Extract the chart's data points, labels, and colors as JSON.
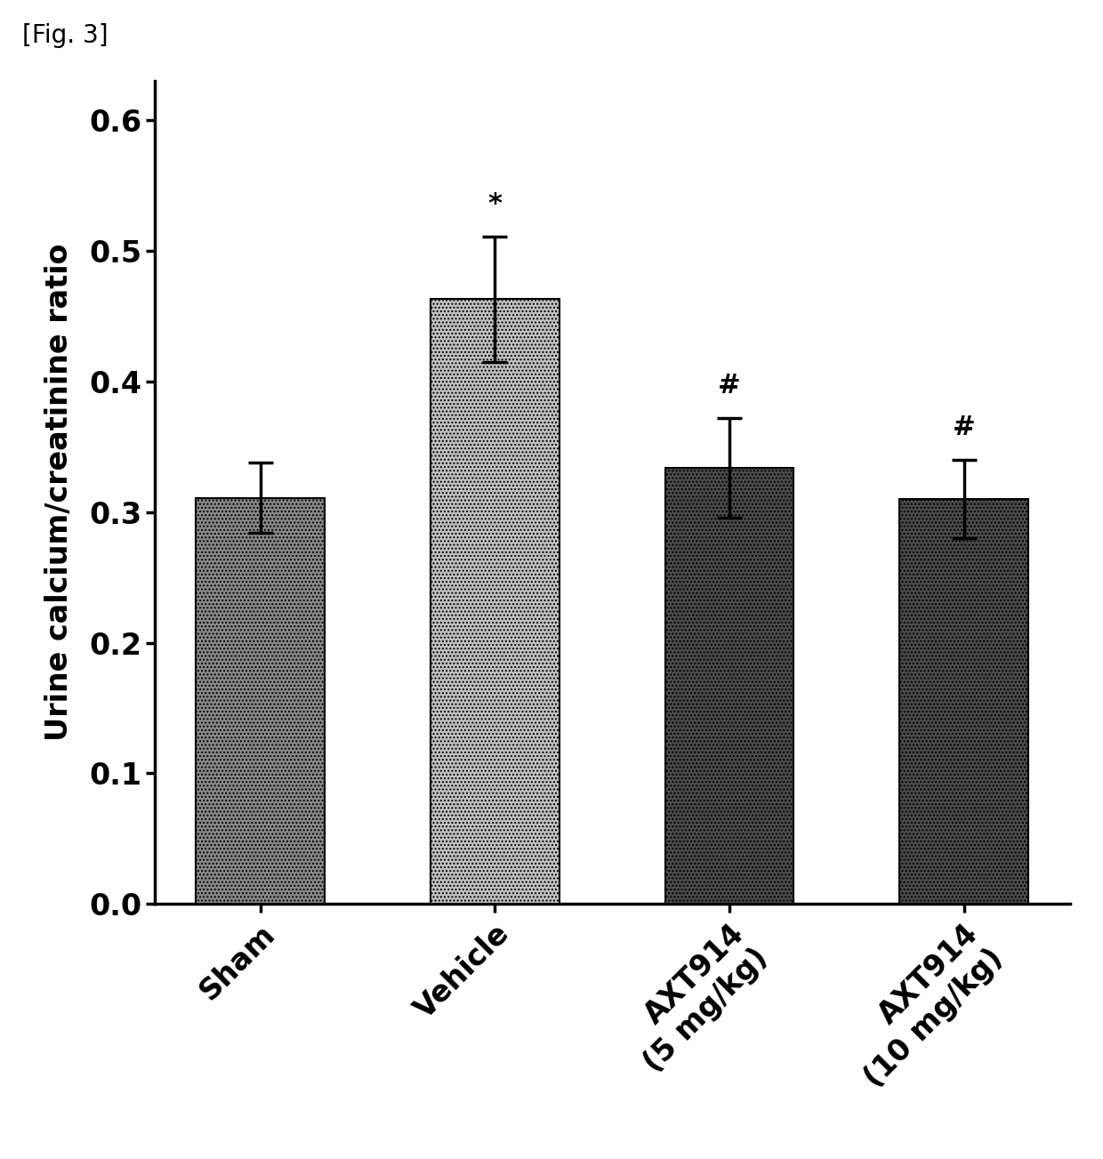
{
  "categories": [
    "Sham",
    "Vehicle",
    "AXT914\n(5 mg/kg)",
    "AXT914\n(10 mg/kg)"
  ],
  "values": [
    0.311,
    0.463,
    0.334,
    0.31
  ],
  "errors": [
    0.027,
    0.048,
    0.038,
    0.03
  ],
  "bar_colors": [
    "#888888",
    "#c0c0c0",
    "#4a4a4a",
    "#4a4a4a"
  ],
  "bar_edgecolors": [
    "#000000",
    "#000000",
    "#000000",
    "#000000"
  ],
  "hatch_patterns": [
    "....",
    "....",
    "....",
    "...."
  ],
  "annotations": [
    "",
    "*",
    "#",
    "#"
  ],
  "ylabel": "Urine calcium/creatinine ratio",
  "ylim": [
    0.0,
    0.63
  ],
  "yticks": [
    0.0,
    0.1,
    0.2,
    0.3,
    0.4,
    0.5,
    0.6
  ],
  "fig_label": "[Fig. 3]",
  "fig_width": 12.4,
  "fig_height": 13.03,
  "bar_width": 0.55,
  "label_fontsize": 24,
  "tick_fontsize": 24,
  "annotation_fontsize": 22,
  "xtick_rotation": 45
}
